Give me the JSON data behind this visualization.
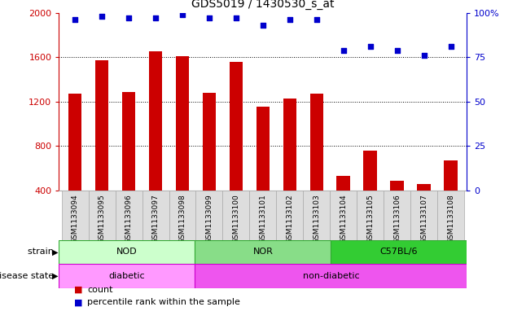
{
  "title": "GDS5019 / 1430530_s_at",
  "samples": [
    "GSM1133094",
    "GSM1133095",
    "GSM1133096",
    "GSM1133097",
    "GSM1133098",
    "GSM1133099",
    "GSM1133100",
    "GSM1133101",
    "GSM1133102",
    "GSM1133103",
    "GSM1133104",
    "GSM1133105",
    "GSM1133106",
    "GSM1133107",
    "GSM1133108"
  ],
  "counts": [
    1270,
    1570,
    1290,
    1650,
    1610,
    1280,
    1555,
    1155,
    1230,
    1270,
    530,
    760,
    490,
    455,
    670
  ],
  "percentiles": [
    96,
    98,
    97,
    97,
    99,
    97,
    97,
    93,
    96,
    96,
    79,
    81,
    79,
    76,
    81
  ],
  "bar_color": "#cc0000",
  "dot_color": "#0000cc",
  "ylim_left": [
    400,
    2000
  ],
  "ylim_right": [
    0,
    100
  ],
  "yticks_left": [
    400,
    800,
    1200,
    1600,
    2000
  ],
  "yticks_right": [
    0,
    25,
    50,
    75,
    100
  ],
  "ytick_right_labels": [
    "0",
    "25",
    "50",
    "75",
    "100%"
  ],
  "grid_values": [
    800,
    1200,
    1600
  ],
  "strain_groups": [
    {
      "label": "NOD",
      "start": 0,
      "end": 5,
      "color": "#ccffcc",
      "edge_color": "#33aa33"
    },
    {
      "label": "NOR",
      "start": 5,
      "end": 10,
      "color": "#88dd88",
      "edge_color": "#33aa33"
    },
    {
      "label": "C57BL/6",
      "start": 10,
      "end": 15,
      "color": "#33cc33",
      "edge_color": "#33aa33"
    }
  ],
  "disease_groups": [
    {
      "label": "diabetic",
      "start": 0,
      "end": 5,
      "color": "#ff99ff",
      "edge_color": "#cc00cc"
    },
    {
      "label": "non-diabetic",
      "start": 5,
      "end": 15,
      "color": "#ee55ee",
      "edge_color": "#cc00cc"
    }
  ],
  "strain_label": "strain",
  "disease_label": "disease state",
  "legend_count_label": "count",
  "legend_pct_label": "percentile rank within the sample",
  "bar_width": 0.5,
  "plot_bg_color": "#ffffff",
  "axes_bg_color": "#ffffff",
  "tick_area_color": "#dddddd"
}
